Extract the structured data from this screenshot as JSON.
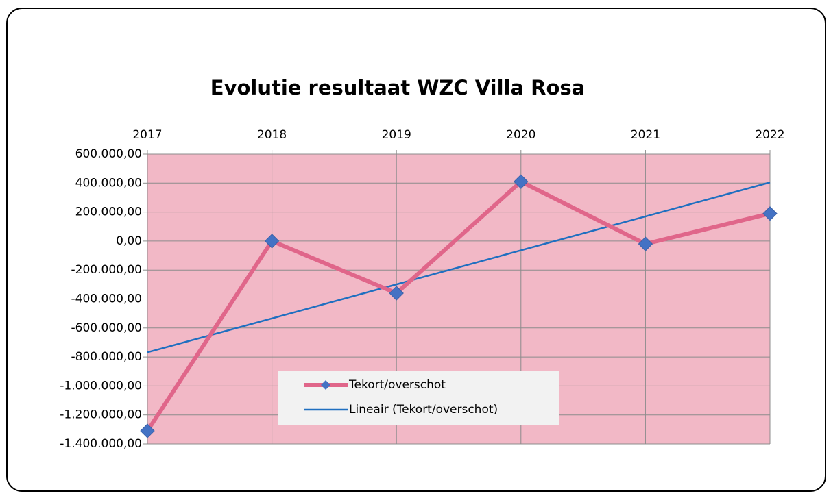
{
  "chart_data": {
    "type": "line",
    "title": "Evolutie resultaat WZC Villa Rosa",
    "categories": [
      "2017",
      "2018",
      "2019",
      "2020",
      "2021",
      "2022"
    ],
    "series": [
      {
        "name": "Tekort/overschot",
        "color": "#e0668a",
        "marker_color": "#4472c4",
        "values": [
          -1310000,
          0,
          -360000,
          410000,
          -20000,
          190000
        ]
      },
      {
        "name": "Lineair (Tekort/overschot)",
        "color": "#1f6fc0",
        "values": [
          -768000,
          -534000,
          -299000,
          -64000,
          170000,
          405000
        ]
      }
    ],
    "ylim": [
      -1400000,
      600000
    ],
    "yticks": [
      {
        "value": -1400000,
        "label": "-1.400.000,00"
      },
      {
        "value": -1200000,
        "label": "-1.200.000,00"
      },
      {
        "value": -1000000,
        "label": "-1.000.000,00"
      },
      {
        "value": -800000,
        "label": "-800.000,00"
      },
      {
        "value": -600000,
        "label": "-600.000,00"
      },
      {
        "value": -400000,
        "label": "-400.000,00"
      },
      {
        "value": -200000,
        "label": "-200.000,00"
      },
      {
        "value": 0,
        "label": "0,00"
      },
      {
        "value": 200000,
        "label": "200.000,00"
      },
      {
        "value": 400000,
        "label": "400.000,00"
      },
      {
        "value": 600000,
        "label": "600.000,00"
      }
    ],
    "grid": true,
    "plot_background": "#f2b8c6"
  }
}
